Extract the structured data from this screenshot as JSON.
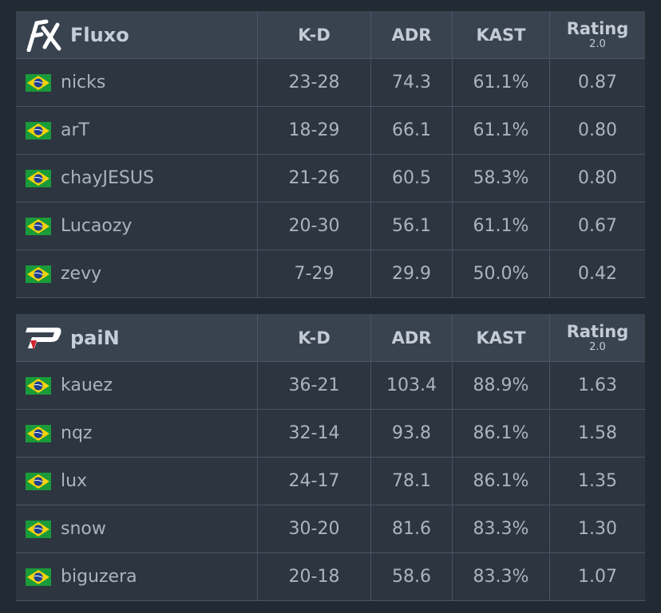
{
  "tables": [
    {
      "team": "Fluxo",
      "headers": [
        "K-D",
        "ADR",
        "KAST",
        "Rating"
      ],
      "rating_sub": "2.0",
      "rows": [
        [
          "nicks",
          "23-28",
          "74.3",
          "61.1%",
          "0.87"
        ],
        [
          "arT",
          "18-29",
          "66.1",
          "61.1%",
          "0.80"
        ],
        [
          "chayJESUS",
          "21-26",
          "60.5",
          "58.3%",
          "0.80"
        ],
        [
          "Lucaozy",
          "20-30",
          "56.1",
          "61.1%",
          "0.67"
        ],
        [
          "zevy",
          "7-29",
          "29.9",
          "50.0%",
          "0.42"
        ]
      ]
    },
    {
      "team": "paiN",
      "headers": [
        "K-D",
        "ADR",
        "KAST",
        "Rating"
      ],
      "rating_sub": "2.0",
      "rows": [
        [
          "kauez",
          "36-21",
          "103.4",
          "88.9%",
          "1.63"
        ],
        [
          "nqz",
          "32-14",
          "93.8",
          "86.1%",
          "1.58"
        ],
        [
          "lux",
          "24-17",
          "78.1",
          "86.1%",
          "1.35"
        ],
        [
          "snow",
          "30-20",
          "81.6",
          "83.3%",
          "1.30"
        ],
        [
          "biguzera",
          "20-18",
          "58.6",
          "83.3%",
          "1.07"
        ]
      ]
    }
  ]
}
